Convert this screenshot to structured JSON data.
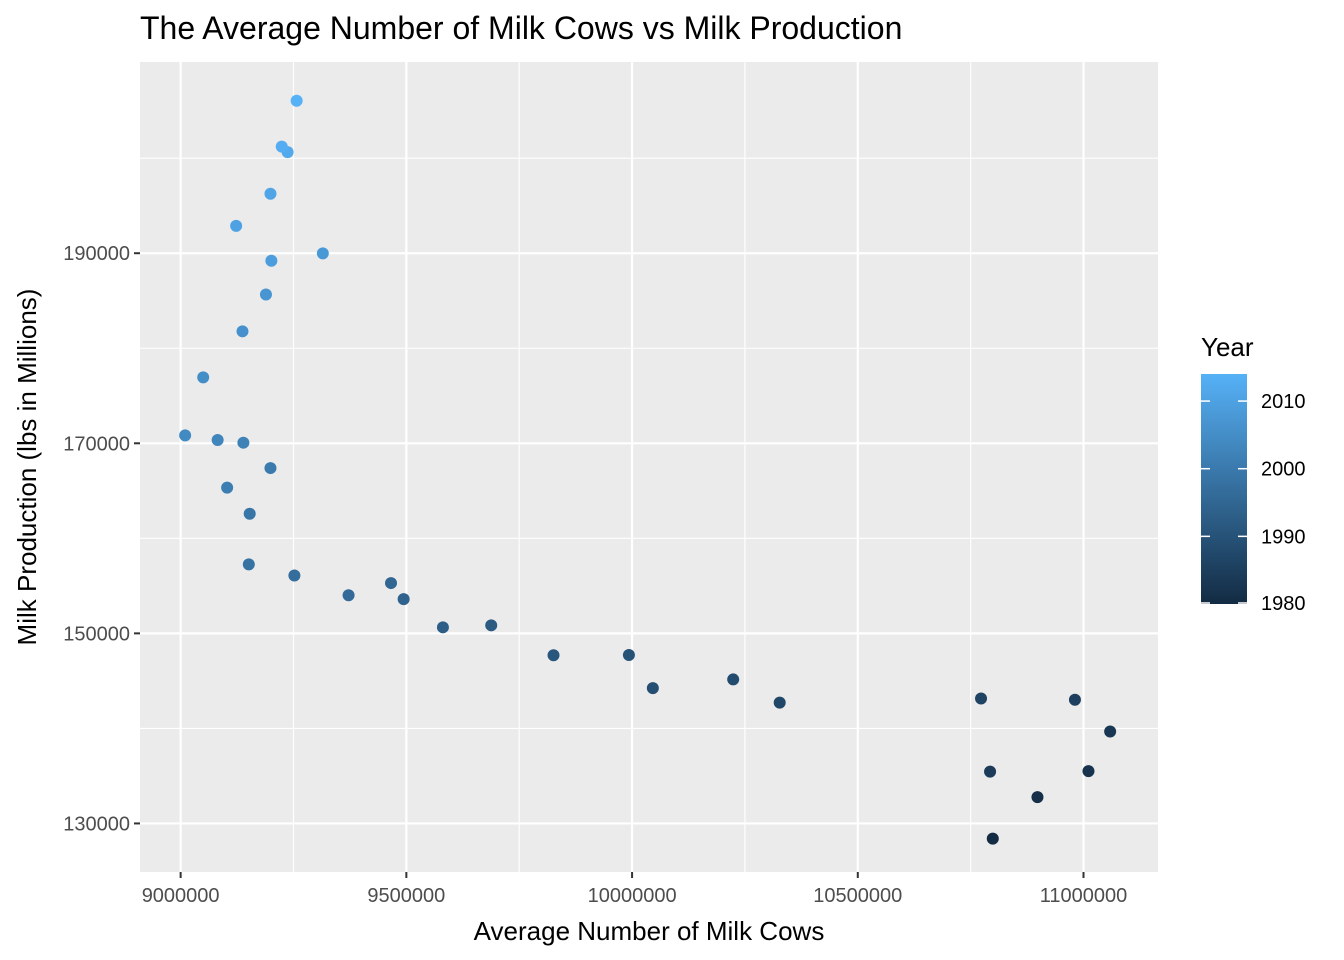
{
  "chart_data": {
    "type": "scatter",
    "title": "The Average Number of Milk Cows vs Milk Production",
    "xlabel": "Average Number of Milk Cows",
    "ylabel": "Milk Production (lbs in Millions)",
    "xlim": [
      8910000,
      11165000
    ],
    "ylim": [
      124890,
      210120
    ],
    "x_ticks": [
      9000000,
      9500000,
      10000000,
      10500000,
      11000000
    ],
    "x_tick_labels": [
      "9000000",
      "9500000",
      "10000000",
      "10500000",
      "11000000"
    ],
    "y_ticks": [
      130000,
      150000,
      170000,
      190000
    ],
    "y_tick_labels": [
      "130000",
      "150000",
      "170000",
      "190000"
    ],
    "grid": true,
    "legend": {
      "title": "Year",
      "placement": "right",
      "type": "colorbar",
      "range": [
        1980,
        2014
      ],
      "ticks": [
        1980,
        1990,
        2000,
        2010
      ],
      "tick_labels": [
        "1980",
        "1990",
        "2000",
        "2010"
      ],
      "color_low": "#132B43",
      "color_high": "#56B1F7"
    },
    "points": [
      {
        "year": 1980,
        "x": 10799000,
        "y": 128406
      },
      {
        "year": 1981,
        "x": 10898000,
        "y": 132770
      },
      {
        "year": 1982,
        "x": 11011000,
        "y": 135505
      },
      {
        "year": 1983,
        "x": 11059000,
        "y": 139672
      },
      {
        "year": 1984,
        "x": 10793000,
        "y": 135450
      },
      {
        "year": 1985,
        "x": 10981000,
        "y": 143012
      },
      {
        "year": 1986,
        "x": 10773000,
        "y": 143147
      },
      {
        "year": 1987,
        "x": 10327000,
        "y": 142709
      },
      {
        "year": 1988,
        "x": 10224000,
        "y": 145152
      },
      {
        "year": 1989,
        "x": 10046000,
        "y": 144239
      },
      {
        "year": 1990,
        "x": 9993000,
        "y": 147721
      },
      {
        "year": 1991,
        "x": 9826000,
        "y": 147697
      },
      {
        "year": 1992,
        "x": 9688000,
        "y": 150847
      },
      {
        "year": 1993,
        "x": 9581000,
        "y": 150636
      },
      {
        "year": 1994,
        "x": 9494000,
        "y": 153602
      },
      {
        "year": 1995,
        "x": 9466000,
        "y": 155292
      },
      {
        "year": 1996,
        "x": 9372000,
        "y": 154006
      },
      {
        "year": 1997,
        "x": 9252000,
        "y": 156091
      },
      {
        "year": 1998,
        "x": 9151000,
        "y": 157262
      },
      {
        "year": 1999,
        "x": 9153000,
        "y": 162589
      },
      {
        "year": 2000,
        "x": 9199000,
        "y": 167393
      },
      {
        "year": 2001,
        "x": 9103000,
        "y": 165336
      },
      {
        "year": 2002,
        "x": 9139000,
        "y": 170063
      },
      {
        "year": 2003,
        "x": 9082000,
        "y": 170348
      },
      {
        "year": 2004,
        "x": 9010000,
        "y": 170832
      },
      {
        "year": 2005,
        "x": 9050000,
        "y": 176931
      },
      {
        "year": 2006,
        "x": 9137000,
        "y": 181782
      },
      {
        "year": 2007,
        "x": 9189000,
        "y": 185654
      },
      {
        "year": 2008,
        "x": 9315000,
        "y": 189982
      },
      {
        "year": 2009,
        "x": 9201000,
        "y": 189202
      },
      {
        "year": 2010,
        "x": 9123000,
        "y": 192877
      },
      {
        "year": 2011,
        "x": 9199000,
        "y": 196255
      },
      {
        "year": 2012,
        "x": 9237000,
        "y": 200642
      },
      {
        "year": 2013,
        "x": 9224000,
        "y": 201218
      },
      {
        "year": 2014,
        "x": 9257000,
        "y": 206046
      }
    ]
  }
}
